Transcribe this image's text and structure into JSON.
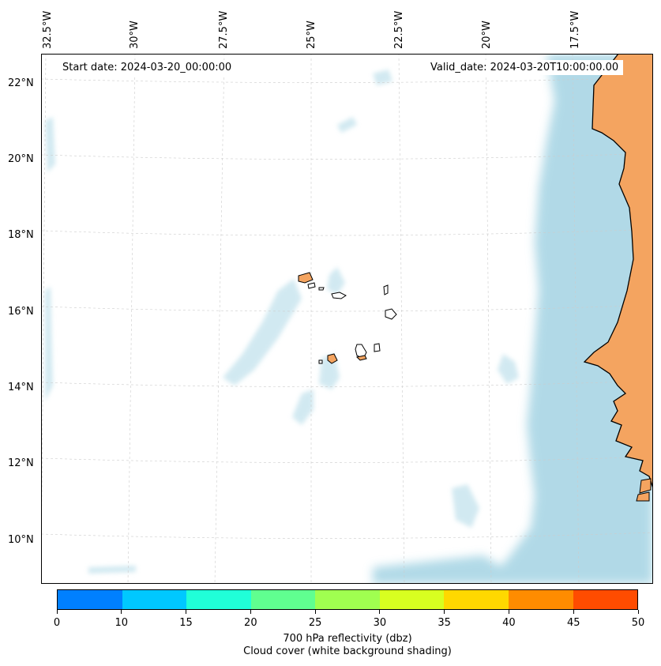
{
  "map": {
    "start_date": "Start date: 2024-03-20_00:00:00",
    "valid_date": "Valid_date: 2024-03-20T10:00:00.00",
    "lon_labels": [
      "32.5°W",
      "30°W",
      "27.5°W",
      "25°W",
      "22.5°W",
      "20°W",
      "17.5°W"
    ],
    "lat_labels": [
      "22°N",
      "20°N",
      "18°N",
      "16°N",
      "14°N",
      "12°N",
      "10°N"
    ],
    "land_color": "#f4a460",
    "cloud_color": "#add8e6",
    "grid_color": "#cccccc"
  },
  "colorbar": {
    "colors": [
      "#0080ff",
      "#00c8ff",
      "#20ffd8",
      "#60ff90",
      "#a0ff50",
      "#d8ff20",
      "#ffd800",
      "#ff8c00",
      "#ff4c00"
    ],
    "ticks": [
      "0",
      "10",
      "15",
      "20",
      "25",
      "30",
      "35",
      "40",
      "45",
      "50"
    ],
    "title_line1": "700 hPa reflectivity (dbz)",
    "title_line2": "Cloud cover (white background shading)"
  }
}
